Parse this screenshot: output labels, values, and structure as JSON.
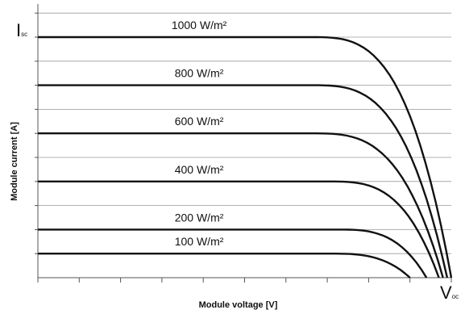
{
  "chart_data": {
    "type": "line",
    "xlabel": "Module voltage [V]",
    "ylabel": "Module current [A]",
    "y_marker": {
      "main": "I",
      "sub": "sc"
    },
    "x_marker": {
      "main": "V",
      "sub": "oc"
    },
    "xlim": [
      0,
      1
    ],
    "ylim": [
      0,
      1.15
    ],
    "grid": "horizontal",
    "series": [
      {
        "name": "1000 W/m²",
        "isc": 1.0,
        "knee": 0.66,
        "voc": 1.0
      },
      {
        "name": "800 W/m²",
        "isc": 0.8,
        "knee": 0.66,
        "voc": 0.99
      },
      {
        "name": "600 W/m²",
        "isc": 0.6,
        "knee": 0.66,
        "voc": 0.98
      },
      {
        "name": "400 W/m²",
        "isc": 0.4,
        "knee": 0.7,
        "voc": 0.97
      },
      {
        "name": "200 W/m²",
        "isc": 0.2,
        "knee": 0.72,
        "voc": 0.94
      },
      {
        "name": "100 W/m²",
        "isc": 0.1,
        "knee": 0.7,
        "voc": 0.9
      }
    ],
    "colors": {
      "line": "#111111",
      "grid": "#9a9a9a",
      "axis": "#555555"
    }
  }
}
